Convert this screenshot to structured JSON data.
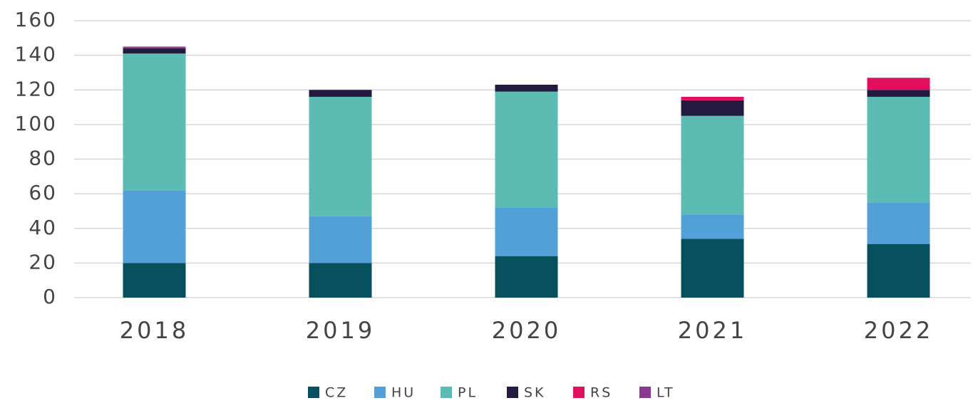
{
  "chart_data": {
    "type": "bar",
    "stacked": true,
    "categories": [
      "2018",
      "2019",
      "2020",
      "2021",
      "2022"
    ],
    "series": [
      {
        "name": "CZ",
        "color": "#05505c",
        "values": [
          20,
          20,
          24,
          34,
          31
        ]
      },
      {
        "name": "HU",
        "color": "#53a0d9",
        "values": [
          42,
          27,
          28,
          14,
          24
        ]
      },
      {
        "name": "PL",
        "color": "#5bbcb4",
        "values": [
          79,
          69,
          67,
          57,
          61
        ]
      },
      {
        "name": "SK",
        "color": "#231b3f",
        "values": [
          3,
          4,
          4,
          9,
          4
        ]
      },
      {
        "name": "RS",
        "color": "#e0105e",
        "values": [
          0,
          0,
          0,
          2,
          7
        ]
      },
      {
        "name": "LT",
        "color": "#8b3a8f",
        "values": [
          1,
          0,
          0,
          0,
          0
        ]
      }
    ],
    "ylim": [
      0,
      160
    ],
    "yticks": [
      0,
      20,
      40,
      60,
      80,
      100,
      120,
      140,
      160
    ],
    "grid": true,
    "legend": "bottom"
  }
}
